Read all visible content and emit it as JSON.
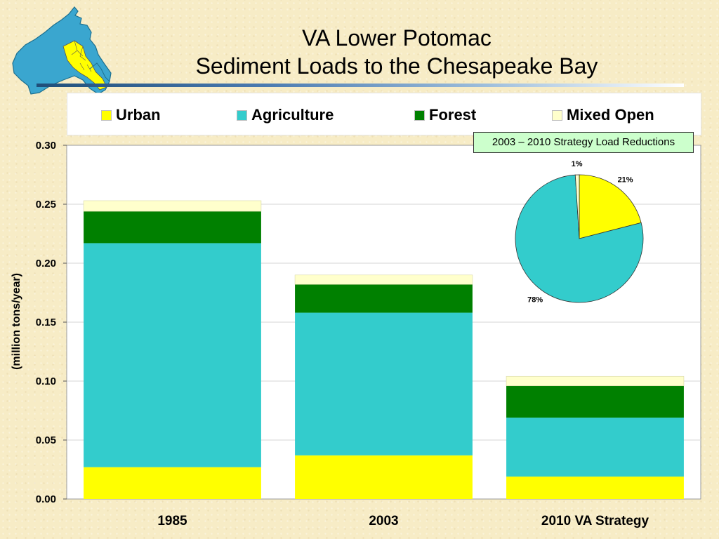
{
  "title": {
    "line1": "VA Lower Potomac",
    "line2": "Sediment Loads to the Chesapeake Bay"
  },
  "colors": {
    "urban": "#ffff00",
    "agriculture": "#33cccc",
    "forest": "#008000",
    "mixed_open": "#ffffcc"
  },
  "logo_icon": "virginia-potomac-watershed-map-icon",
  "chart_data": [
    {
      "type": "bar",
      "stacked": true,
      "categories": [
        "1985",
        "2003",
        "2010 VA Strategy"
      ],
      "series": [
        {
          "name": "Urban",
          "color": "#ffff00",
          "values": [
            0.027,
            0.037,
            0.019
          ]
        },
        {
          "name": "Agriculture",
          "color": "#33cccc",
          "values": [
            0.19,
            0.121,
            0.05
          ]
        },
        {
          "name": "Forest",
          "color": "#008000",
          "values": [
            0.027,
            0.024,
            0.027
          ]
        },
        {
          "name": "Mixed Open",
          "color": "#ffffcc",
          "values": [
            0.009,
            0.008,
            0.008
          ]
        }
      ],
      "ylabel": "(million tons/year)",
      "ylim": [
        0,
        0.3
      ],
      "yticks": [
        "0.00",
        "0.05",
        "0.10",
        "0.15",
        "0.20",
        "0.25",
        "0.30"
      ],
      "grid": true,
      "legend": "top"
    },
    {
      "type": "pie",
      "title": "2003 – 2010 Strategy Load Reductions",
      "slices": [
        {
          "name": "Urban",
          "value": 21,
          "label": "21%",
          "color": "#ffff00"
        },
        {
          "name": "Agriculture",
          "value": 78,
          "label": "78%",
          "color": "#33cccc"
        },
        {
          "name": "Mixed Open",
          "value": 1,
          "label": "1%",
          "color": "#ffffcc"
        }
      ]
    }
  ]
}
